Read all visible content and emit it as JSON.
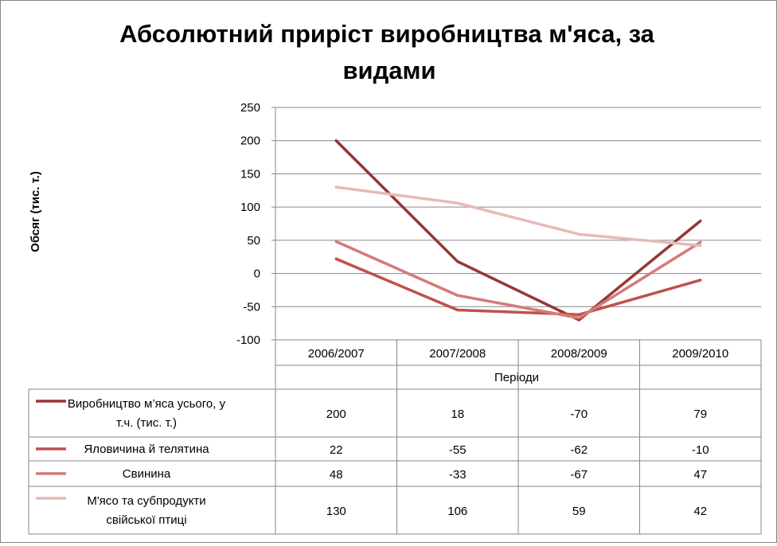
{
  "chart_data": {
    "type": "line",
    "title_lines": [
      "Абсолютний приріст виробництва м'яса, за",
      "видами"
    ],
    "ylabel": "Обсяг (тис. т.)",
    "xlabel": "Періоди",
    "categories": [
      "2006/2007",
      "2007/2008",
      "2008/2009",
      "2009/2010"
    ],
    "ylim": [
      -100,
      250
    ],
    "yticks": [
      250,
      200,
      150,
      100,
      50,
      0,
      -50,
      -100
    ],
    "grid": true,
    "legend_position": "bottom data table",
    "series": [
      {
        "name_lines": [
          "Виробництво м’яса усього, у",
          "т.ч. (тис. т.)"
        ],
        "values": [
          200,
          18,
          -70,
          79
        ],
        "color": "#953735"
      },
      {
        "name_lines": [
          "Яловичина й телятина"
        ],
        "values": [
          22,
          -55,
          -62,
          -10
        ],
        "color": "#C0504D"
      },
      {
        "name_lines": [
          "Свинина"
        ],
        "values": [
          48,
          -33,
          -67,
          47
        ],
        "color": "#D47B78"
      },
      {
        "name_lines": [
          "М'ясо та субпродукти",
          "свійської птиці"
        ],
        "values": [
          130,
          106,
          59,
          42
        ],
        "color": "#E6B9B8"
      }
    ]
  }
}
